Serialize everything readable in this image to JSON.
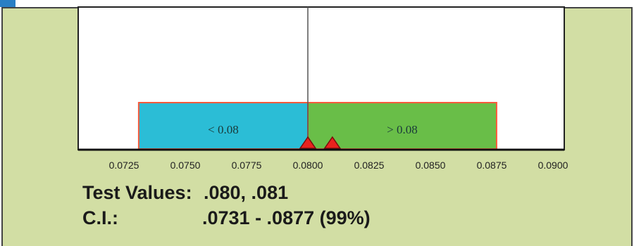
{
  "chart_data": {
    "type": "bar",
    "xlim": [
      0.07,
      0.09
    ],
    "x_ticks": [
      "0.0725",
      "0.0750",
      "0.0775",
      "0.0800",
      "0.0825",
      "0.0850",
      "0.0875",
      "0.0900"
    ],
    "x_tick_values": [
      0.0725,
      0.075,
      0.0775,
      0.08,
      0.0825,
      0.085,
      0.0875,
      0.09
    ],
    "reference_line": 0.08,
    "intervals": [
      {
        "label": "< 0.08",
        "from": 0.0731,
        "to": 0.08,
        "color": "#2bbdd6"
      },
      {
        "label": "> 0.08",
        "from": 0.08,
        "to": 0.0877,
        "color": "#69be48"
      }
    ],
    "markers": [
      0.08,
      0.081
    ],
    "marker_color": "#e8231e",
    "box_outline_color": "#ff5a3c",
    "grid": false
  },
  "notes": {
    "test_values_label": "Test Values:",
    "test_values": ".080, .081",
    "ci_label": "C.I.:",
    "ci_value": ".0731 - .0877 (99%)"
  }
}
